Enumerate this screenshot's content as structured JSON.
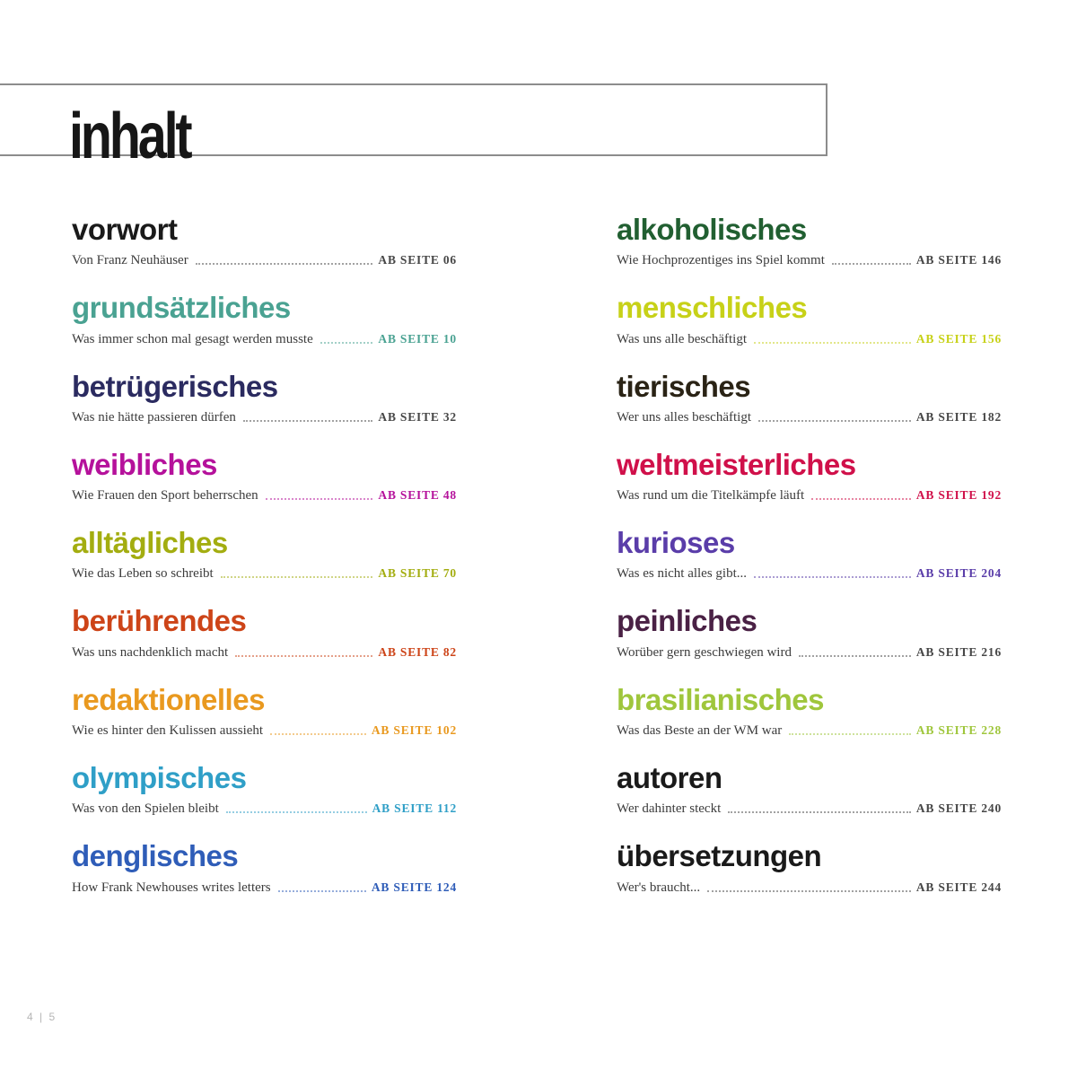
{
  "page_title": "inhalt",
  "footer": {
    "page_marker": "4 | 5"
  },
  "columns": {
    "left": [
      {
        "heading": "vorwort",
        "description": "Von Franz Neuhäuser",
        "page_ref": "AB SEITE 06",
        "color": "#1a1a1a",
        "ref_color": "#474747"
      },
      {
        "heading": "grundsätzliches",
        "description": "Was immer schon mal gesagt werden musste",
        "page_ref": "AB SEITE 10",
        "color": "#4aa292",
        "ref_color": "#4aa292"
      },
      {
        "heading": "betrügerisches",
        "description": "Was nie hätte passieren dürfen",
        "page_ref": "AB SEITE 32",
        "color": "#2b2b60",
        "ref_color": "#474747"
      },
      {
        "heading": "weibliches",
        "description": "Wie Frauen den Sport beherrschen",
        "page_ref": "AB SEITE 48",
        "color": "#b5119b",
        "ref_color": "#b5119b"
      },
      {
        "heading": "alltägliches",
        "description": "Wie das Leben so schreibt",
        "page_ref": "AB SEITE 70",
        "color": "#a3ad10",
        "ref_color": "#a3ad10"
      },
      {
        "heading": "berührendes",
        "description": "Was uns nachdenklich macht",
        "page_ref": "AB SEITE 82",
        "color": "#cd4418",
        "ref_color": "#cd4418"
      },
      {
        "heading": "redaktionelles",
        "description": "Wie es hinter den Kulissen aussieht",
        "page_ref": "AB SEITE 102",
        "color": "#e9991f",
        "ref_color": "#e9991f"
      },
      {
        "heading": "olympisches",
        "description": "Was von den Spielen bleibt",
        "page_ref": "AB SEITE 112",
        "color": "#2f9fc7",
        "ref_color": "#2f9fc7"
      },
      {
        "heading": "denglisches",
        "description": "How Frank Newhouses writes letters",
        "page_ref": "AB SEITE 124",
        "color": "#2f5db8",
        "ref_color": "#2f5db8"
      }
    ],
    "right": [
      {
        "heading": "alkoholisches",
        "description": "Wie Hochprozentiges ins Spiel kommt",
        "page_ref": "AB SEITE 146",
        "color": "#215f31",
        "ref_color": "#474747"
      },
      {
        "heading": "menschliches",
        "description": "Was uns alle beschäftigt",
        "page_ref": "AB SEITE 156",
        "color": "#c7d118",
        "ref_color": "#c7d118"
      },
      {
        "heading": "tierisches",
        "description": "Wer uns alles beschäftigt",
        "page_ref": "AB SEITE 182",
        "color": "#2a2315",
        "ref_color": "#474747"
      },
      {
        "heading": "weltmeisterliches",
        "description": "Was rund um die Titelkämpfe läuft",
        "page_ref": "AB SEITE 192",
        "color": "#d0104a",
        "ref_color": "#d0104a"
      },
      {
        "heading": "kurioses",
        "description": "Was es nicht alles gibt...",
        "page_ref": "AB SEITE 204",
        "color": "#5a3da9",
        "ref_color": "#5a3da9"
      },
      {
        "heading": "peinliches",
        "description": "Worüber gern geschwiegen wird",
        "page_ref": "AB SEITE 216",
        "color": "#4a2145",
        "ref_color": "#474747"
      },
      {
        "heading": "brasilianisches",
        "description": "Was das Beste an der WM war",
        "page_ref": "AB SEITE 228",
        "color": "#9fc63c",
        "ref_color": "#9fc63c"
      },
      {
        "heading": "autoren",
        "description": "Wer dahinter steckt",
        "page_ref": "AB SEITE 240",
        "color": "#1a1a1a",
        "ref_color": "#474747"
      },
      {
        "heading": "übersetzungen",
        "description": "Wer's braucht...",
        "page_ref": "AB SEITE 244",
        "color": "#1a1a1a",
        "ref_color": "#474747"
      }
    ]
  }
}
